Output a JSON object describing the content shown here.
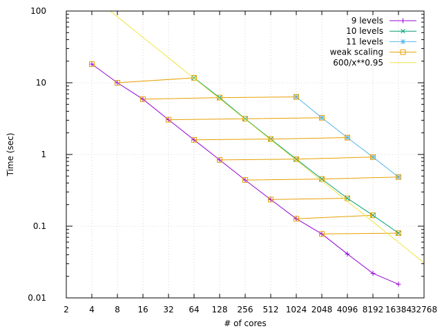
{
  "chart_data": {
    "type": "line",
    "title": "",
    "xlabel": "# of cores",
    "ylabel": "Time (sec)",
    "xscale": "log2",
    "yscale": "log10",
    "xlim": [
      2,
      32768
    ],
    "ylim": [
      0.01,
      100
    ],
    "x_ticks": [
      2,
      4,
      8,
      16,
      32,
      64,
      128,
      256,
      512,
      1024,
      2048,
      4096,
      8192,
      16384,
      32768
    ],
    "y_ticks": [
      0.01,
      0.1,
      1,
      10,
      100
    ],
    "y_tick_labels": [
      "0.01",
      "0.1",
      "1",
      "10",
      "100"
    ],
    "grid": true,
    "legend_position": "top-right",
    "series": [
      {
        "name": "9 levels",
        "color": "#9400d3",
        "marker": "plus",
        "points": [
          [
            4,
            18.2
          ],
          [
            8,
            10.0
          ],
          [
            16,
            5.9
          ],
          [
            32,
            3.05
          ],
          [
            64,
            1.6
          ],
          [
            128,
            0.84
          ],
          [
            256,
            0.44
          ],
          [
            512,
            0.235
          ],
          [
            1024,
            0.127
          ],
          [
            2048,
            0.078
          ],
          [
            4096,
            0.041
          ],
          [
            8192,
            0.022
          ],
          [
            16384,
            0.0155
          ]
        ]
      },
      {
        "name": "10 levels",
        "color": "#009e73",
        "marker": "cross",
        "points": [
          [
            64,
            11.7
          ],
          [
            128,
            6.2
          ],
          [
            256,
            3.15
          ],
          [
            512,
            1.64
          ],
          [
            1024,
            0.86
          ],
          [
            2048,
            0.455
          ],
          [
            4096,
            0.245
          ],
          [
            8192,
            0.142
          ],
          [
            16384,
            0.08
          ]
        ]
      },
      {
        "name": "11 levels",
        "color": "#56b4e9",
        "marker": "star",
        "points": [
          [
            1024,
            6.35
          ],
          [
            2048,
            3.25
          ],
          [
            4096,
            1.72
          ],
          [
            8192,
            0.92
          ],
          [
            16384,
            0.485
          ]
        ]
      },
      {
        "name": "weak scaling",
        "color": "#e69f00",
        "marker": "box",
        "segments": [
          [
            [
              4,
              18.2
            ]
          ],
          [
            [
              8,
              10.0
            ],
            [
              64,
              11.7
            ]
          ],
          [
            [
              16,
              5.9
            ],
            [
              128,
              6.2
            ],
            [
              1024,
              6.35
            ]
          ],
          [
            [
              32,
              3.05
            ],
            [
              256,
              3.15
            ],
            [
              2048,
              3.25
            ]
          ],
          [
            [
              64,
              1.6
            ],
            [
              512,
              1.64
            ],
            [
              4096,
              1.72
            ]
          ],
          [
            [
              128,
              0.84
            ],
            [
              1024,
              0.86
            ],
            [
              8192,
              0.92
            ]
          ],
          [
            [
              256,
              0.44
            ],
            [
              2048,
              0.455
            ],
            [
              16384,
              0.485
            ]
          ],
          [
            [
              512,
              0.235
            ],
            [
              4096,
              0.245
            ]
          ],
          [
            [
              1024,
              0.127
            ],
            [
              8192,
              0.142
            ]
          ],
          [
            [
              2048,
              0.078
            ],
            [
              16384,
              0.08
            ]
          ]
        ]
      },
      {
        "name": "600/x**0.95",
        "color": "#f0e442",
        "marker": "none",
        "function": {
          "a": 600,
          "b": 0.95
        }
      }
    ]
  }
}
